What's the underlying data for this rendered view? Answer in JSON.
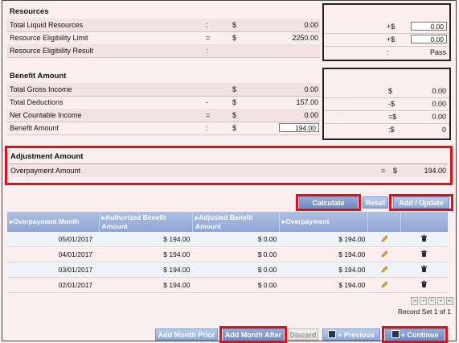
{
  "resources": {
    "title": "Resources",
    "rows": [
      {
        "label": "Total Liquid Resources",
        "op": ":",
        "cur": "$",
        "value": "0.00"
      },
      {
        "label": "Resource Eligibility Limit",
        "op": "=",
        "cur": "$",
        "value": "2250.00"
      },
      {
        "label": "Resource Eligibility Result",
        "op": ":",
        "cur": "",
        "value": ""
      }
    ],
    "side": [
      {
        "op": "+$",
        "value": "0.00"
      },
      {
        "op": "+$",
        "value": "0.00"
      },
      {
        "op": ":",
        "value": "Pass"
      }
    ]
  },
  "benefit": {
    "title": "Benefit Amount",
    "rows": [
      {
        "label": "Total Gross Income",
        "op": "",
        "cur": "$",
        "value": "0.00"
      },
      {
        "label": "Total Deductions",
        "op": "-",
        "cur": "$",
        "value": "157.00"
      },
      {
        "label": "Net Countable Income",
        "op": "=",
        "cur": "$",
        "value": "0.00"
      },
      {
        "label": "Benefit Amount",
        "op": ":",
        "cur": "$",
        "value": "194.00"
      }
    ],
    "side": [
      {
        "op": "$",
        "value": "0.00"
      },
      {
        "op": "-$",
        "value": "0.00"
      },
      {
        "op": "=$",
        "value": "0.00"
      },
      {
        "op": ":$",
        "value": "0"
      }
    ]
  },
  "adjustment": {
    "title": "Adjustment Amount",
    "label": "Overpayment Amount",
    "op": "=",
    "cur": "$",
    "value": "194.00"
  },
  "actions": {
    "calculate": "Calculate",
    "reset": "Reset",
    "add_update": "Add / Update"
  },
  "table": {
    "headers": [
      "Overpayment Month",
      "Authorized Benefit Amount",
      "Adjusted Benefit Amount",
      "Overpayment"
    ],
    "rows": [
      {
        "month": "05/01/2017",
        "authorized": "$ 194.00",
        "adjusted": "$ 0.00",
        "overpayment": "$ 194.00"
      },
      {
        "month": "04/01/2017",
        "authorized": "$ 194.00",
        "adjusted": "$ 0.00",
        "overpayment": "$ 194.00"
      },
      {
        "month": "03/01/2017",
        "authorized": "$ 194.00",
        "adjusted": "$ 0.00",
        "overpayment": "$ 194.00"
      },
      {
        "month": "02/01/2017",
        "authorized": "$ 194.00",
        "adjusted": "$ 0.00",
        "overpayment": "$ 194.00"
      }
    ],
    "record_set": "Record Set 1 of 1"
  },
  "footer": {
    "add_month_prior": "Add Month Prior",
    "add_month_after": "Add Month After",
    "discard": "Discard",
    "previous": "+ Previous",
    "continue": "+ Continue"
  },
  "icons": {
    "edit": "pencil-icon",
    "delete": "trash-icon",
    "save": "floppy-disk-icon"
  },
  "colors": {
    "highlight": "#e0101b",
    "button": "#8ea7d6",
    "background": "#fbeeee"
  }
}
